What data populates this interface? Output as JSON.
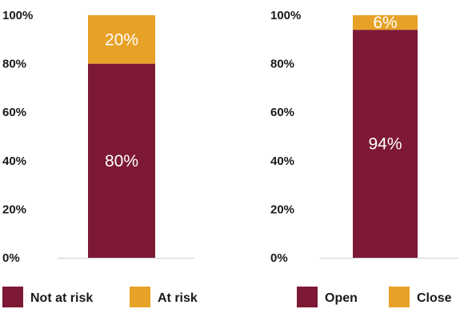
{
  "chart_data": [
    {
      "type": "bar",
      "stacked": true,
      "categories": [
        ""
      ],
      "series": [
        {
          "name": "Not at risk",
          "values": [
            80
          ],
          "color": "#7d1935",
          "label": "80%"
        },
        {
          "name": "At risk",
          "values": [
            20
          ],
          "color": "#e8a127",
          "label": "20%"
        }
      ],
      "yticks": [
        "0%",
        "20%",
        "40%",
        "60%",
        "80%",
        "100%"
      ],
      "ylim": [
        0,
        100
      ],
      "legend": "bottom"
    },
    {
      "type": "bar",
      "stacked": true,
      "categories": [
        ""
      ],
      "series": [
        {
          "name": "Open",
          "values": [
            94
          ],
          "color": "#7d1935",
          "label": "94%"
        },
        {
          "name": "Close",
          "values": [
            6
          ],
          "color": "#e8a127",
          "label": "6%"
        }
      ],
      "yticks": [
        "0%",
        "20%",
        "40%",
        "60%",
        "80%",
        "100%"
      ],
      "ylim": [
        0,
        100
      ],
      "legend": "bottom"
    }
  ]
}
